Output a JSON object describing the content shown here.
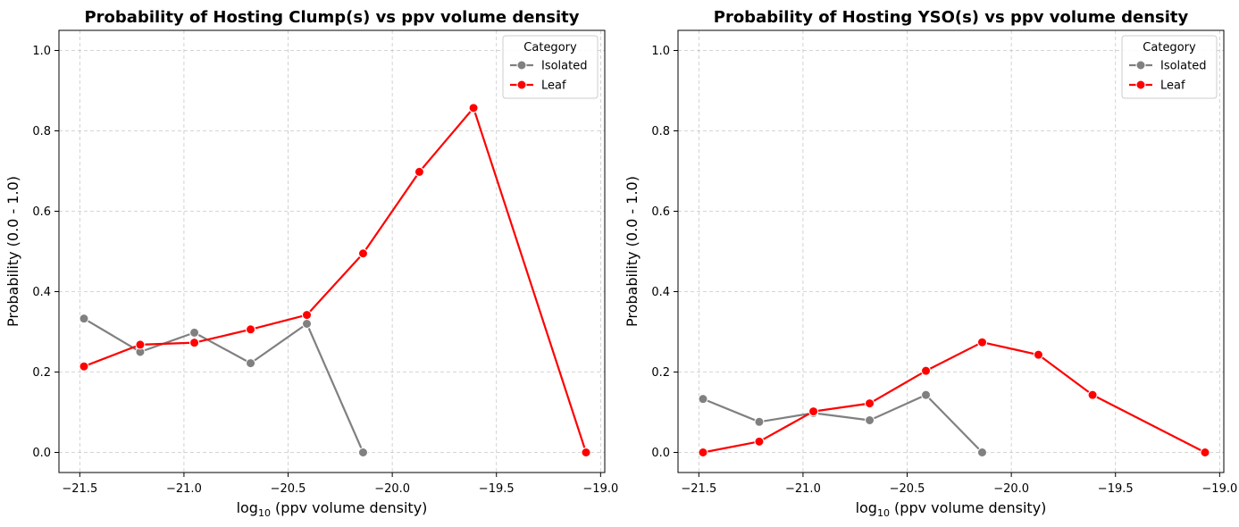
{
  "chart_data": [
    {
      "type": "line",
      "title": "Probability of Hosting Clump(s) vs ppv volume density",
      "xlabel": "log",
      "xlabel_sub": "10",
      "xlabel_rest": " (ppv volume density)",
      "ylabel": "Probability (0.0 - 1.0)",
      "xlim": [
        -21.6,
        -18.98
      ],
      "ylim": [
        -0.05,
        1.05
      ],
      "xticks": [
        -21.5,
        -21.0,
        -20.5,
        -20.0,
        -19.5,
        -19.0
      ],
      "xtick_labels": [
        "−21.5",
        "−21.0",
        "−20.5",
        "−20.0",
        "−19.5",
        "−19.0"
      ],
      "yticks": [
        0.0,
        0.2,
        0.4,
        0.6,
        0.8,
        1.0
      ],
      "ytick_labels": [
        "0.0",
        "0.2",
        "0.4",
        "0.6",
        "0.8",
        "1.0"
      ],
      "grid": true,
      "legend_title": "Category",
      "legend_position": "top-right",
      "series": [
        {
          "name": "Isolated",
          "color": "#808080",
          "x": [
            -21.48,
            -21.21,
            -20.95,
            -20.68,
            -20.41,
            -20.14
          ],
          "y": [
            0.333,
            0.25,
            0.298,
            0.222,
            0.32,
            0.0
          ]
        },
        {
          "name": "Leaf",
          "color": "#ff0000",
          "x": [
            -21.48,
            -21.21,
            -20.95,
            -20.68,
            -20.41,
            -20.14,
            -19.87,
            -19.61,
            -19.07
          ],
          "y": [
            0.214,
            0.268,
            0.273,
            0.306,
            0.342,
            0.495,
            0.698,
            0.857,
            0.0
          ]
        }
      ]
    },
    {
      "type": "line",
      "title": "Probability of Hosting YSO(s) vs ppv volume density",
      "xlabel": "log",
      "xlabel_sub": "10",
      "xlabel_rest": " (ppv volume density)",
      "ylabel": "Probability (0.0 - 1.0)",
      "xlim": [
        -21.6,
        -18.98
      ],
      "ylim": [
        -0.05,
        1.05
      ],
      "xticks": [
        -21.5,
        -21.0,
        -20.5,
        -20.0,
        -19.5,
        -19.0
      ],
      "xtick_labels": [
        "−21.5",
        "−21.0",
        "−20.5",
        "−20.0",
        "−19.5",
        "−19.0"
      ],
      "yticks": [
        0.0,
        0.2,
        0.4,
        0.6,
        0.8,
        1.0
      ],
      "ytick_labels": [
        "0.0",
        "0.2",
        "0.4",
        "0.6",
        "0.8",
        "1.0"
      ],
      "grid": true,
      "legend_title": "Category",
      "legend_position": "top-right",
      "series": [
        {
          "name": "Isolated",
          "color": "#808080",
          "x": [
            -21.48,
            -21.21,
            -20.95,
            -20.68,
            -20.41,
            -20.14
          ],
          "y": [
            0.133,
            0.076,
            0.098,
            0.08,
            0.143,
            0.0
          ]
        },
        {
          "name": "Leaf",
          "color": "#ff0000",
          "x": [
            -21.48,
            -21.21,
            -20.95,
            -20.68,
            -20.41,
            -20.14,
            -19.87,
            -19.61,
            -19.07
          ],
          "y": [
            0.0,
            0.027,
            0.102,
            0.122,
            0.203,
            0.274,
            0.243,
            0.143,
            0.0
          ]
        }
      ]
    }
  ]
}
